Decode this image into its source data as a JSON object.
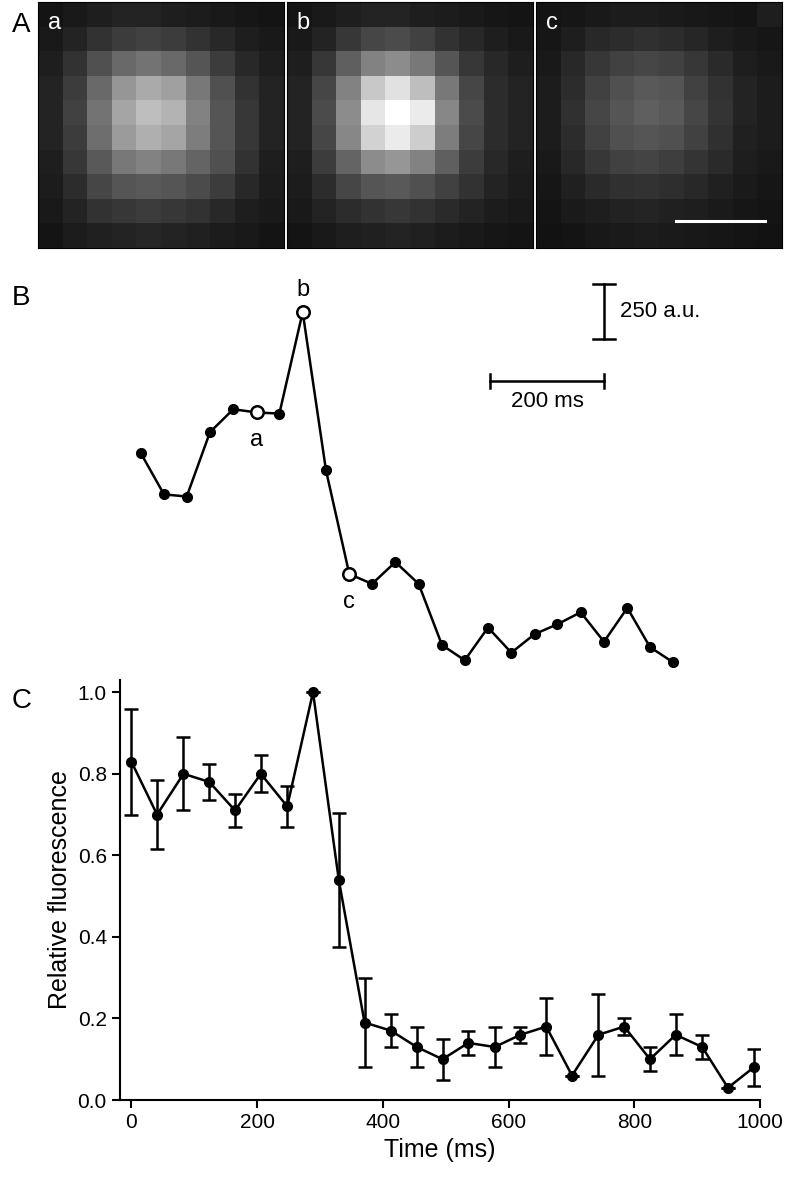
{
  "chart_data": [
    {
      "type": "heatmap",
      "panel_label": "A",
      "title": "a",
      "color_range": [
        0,
        255
      ],
      "cells": [
        [
          20,
          25,
          30,
          35,
          35,
          30,
          28,
          25,
          22,
          20
        ],
        [
          25,
          35,
          50,
          60,
          65,
          60,
          50,
          40,
          30,
          25
        ],
        [
          30,
          50,
          80,
          105,
          115,
          105,
          85,
          60,
          40,
          30
        ],
        [
          35,
          60,
          105,
          150,
          170,
          160,
          120,
          80,
          50,
          35
        ],
        [
          35,
          65,
          115,
          165,
          190,
          180,
          130,
          85,
          55,
          35
        ],
        [
          35,
          60,
          110,
          155,
          175,
          165,
          125,
          85,
          55,
          35
        ],
        [
          30,
          55,
          90,
          120,
          130,
          120,
          100,
          80,
          50,
          30
        ],
        [
          28,
          45,
          70,
          85,
          90,
          85,
          75,
          60,
          40,
          28
        ],
        [
          25,
          35,
          50,
          55,
          60,
          55,
          50,
          40,
          30,
          25
        ],
        [
          20,
          28,
          32,
          35,
          38,
          35,
          32,
          28,
          25,
          20
        ]
      ]
    },
    {
      "type": "heatmap",
      "title": "b",
      "color_range": [
        0,
        255
      ],
      "cells": [
        [
          20,
          25,
          30,
          35,
          35,
          30,
          28,
          25,
          22,
          20
        ],
        [
          25,
          35,
          55,
          70,
          75,
          65,
          50,
          40,
          30,
          25
        ],
        [
          30,
          55,
          95,
          130,
          140,
          120,
          85,
          55,
          40,
          30
        ],
        [
          35,
          70,
          130,
          200,
          225,
          190,
          120,
          70,
          45,
          35
        ],
        [
          35,
          75,
          140,
          230,
          255,
          235,
          135,
          75,
          45,
          35
        ],
        [
          35,
          70,
          135,
          210,
          235,
          205,
          125,
          70,
          45,
          35
        ],
        [
          30,
          60,
          100,
          140,
          150,
          130,
          95,
          60,
          40,
          30
        ],
        [
          28,
          45,
          70,
          85,
          90,
          80,
          65,
          50,
          35,
          28
        ],
        [
          25,
          35,
          45,
          50,
          55,
          50,
          42,
          35,
          28,
          25
        ],
        [
          20,
          25,
          30,
          32,
          35,
          32,
          28,
          25,
          22,
          20
        ]
      ]
    },
    {
      "type": "heatmap",
      "title": "c",
      "color_range": [
        0,
        255
      ],
      "cells": [
        [
          20,
          22,
          25,
          28,
          28,
          26,
          24,
          22,
          20,
          30
        ],
        [
          22,
          30,
          40,
          45,
          48,
          45,
          38,
          30,
          25,
          22
        ],
        [
          25,
          40,
          55,
          65,
          70,
          65,
          55,
          42,
          30,
          25
        ],
        [
          28,
          45,
          65,
          80,
          90,
          85,
          65,
          50,
          35,
          28
        ],
        [
          28,
          48,
          70,
          85,
          95,
          90,
          70,
          52,
          35,
          28
        ],
        [
          28,
          45,
          65,
          80,
          85,
          80,
          65,
          48,
          32,
          28
        ],
        [
          25,
          40,
          55,
          65,
          68,
          62,
          52,
          42,
          30,
          25
        ],
        [
          22,
          32,
          42,
          48,
          50,
          46,
          40,
          32,
          26,
          22
        ],
        [
          20,
          26,
          30,
          34,
          36,
          33,
          30,
          26,
          22,
          20
        ],
        [
          18,
          20,
          24,
          26,
          28,
          26,
          24,
          22,
          20,
          18
        ]
      ]
    },
    {
      "type": "line",
      "panel_label": "B",
      "tick_labels": false,
      "color": "#000000",
      "marker": "circle",
      "x": [
        0,
        41,
        81,
        122,
        163,
        204,
        244,
        285,
        326,
        367,
        407,
        448,
        489,
        530,
        570,
        611,
        652,
        693,
        733,
        774,
        815,
        856,
        896,
        937
      ],
      "values": [
        1170,
        980,
        970,
        1265,
        1370,
        1355,
        1350,
        1815,
        1090,
        615,
        570,
        670,
        570,
        290,
        220,
        370,
        255,
        340,
        385,
        440,
        305,
        460,
        280,
        210
      ],
      "annotations": [
        {
          "text": "a",
          "x": 204
        },
        {
          "text": "b",
          "x": 285
        },
        {
          "text": "c",
          "x": 367
        }
      ],
      "scale_bars": [
        {
          "axis": "y",
          "value": 250,
          "label": "250 a.u."
        },
        {
          "axis": "x",
          "value": 200,
          "label": "200 ms"
        }
      ]
    },
    {
      "type": "line",
      "panel_label": "C",
      "x_label": "Time (ms)",
      "y_label": "Relative fluorescence",
      "color": "#000000",
      "marker": "circle",
      "x": [
        0,
        41,
        83,
        124,
        165,
        206,
        248,
        289,
        330,
        371,
        413,
        454,
        495,
        536,
        578,
        619,
        660,
        701,
        743,
        784,
        825,
        866,
        908,
        949,
        990
      ],
      "values": [
        0.83,
        0.7,
        0.8,
        0.78,
        0.71,
        0.8,
        0.72,
        1.0,
        0.54,
        0.19,
        0.17,
        0.13,
        0.1,
        0.14,
        0.13,
        0.16,
        0.18,
        0.06,
        0.16,
        0.18,
        0.1,
        0.16,
        0.13,
        0.03,
        0.08
      ],
      "errors": [
        0.13,
        0.085,
        0.09,
        0.045,
        0.04,
        0.045,
        0.05,
        0,
        0.165,
        0.11,
        0.04,
        0.05,
        0.05,
        0.03,
        0.05,
        0.02,
        0.07,
        0,
        0.1,
        0.02,
        0.03,
        0.05,
        0.03,
        0,
        0.045
      ],
      "xlim": [
        -18,
        1000
      ],
      "xticks": [
        0,
        200,
        400,
        600,
        800,
        1000
      ],
      "ylim": [
        0,
        1.03
      ],
      "yticks": [
        {
          "value": 0,
          "label": "0.0"
        },
        0.2,
        0.4,
        0.6,
        0.8,
        {
          "value": 1,
          "label": "1.0"
        }
      ]
    }
  ]
}
